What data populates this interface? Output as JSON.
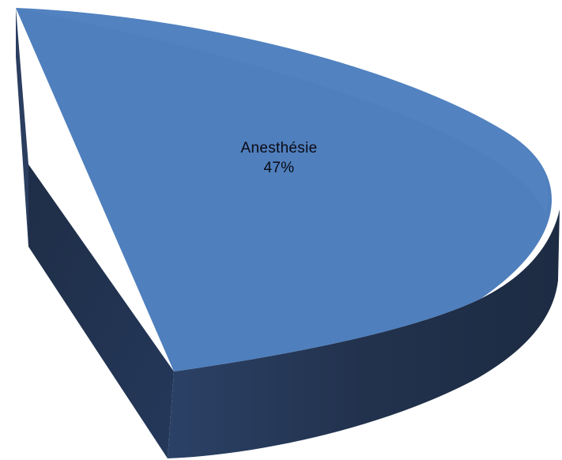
{
  "chart_data": {
    "type": "pie",
    "style": "3d-exploded",
    "slices": [
      {
        "label": "Anesthésie",
        "value": 47,
        "value_label": "47%"
      }
    ],
    "colors": {
      "top": "#4f7fbd",
      "side": "#22324d",
      "side_dark": "#1d2b43",
      "side_light": "#2b4166",
      "background": "#ffffff"
    }
  }
}
